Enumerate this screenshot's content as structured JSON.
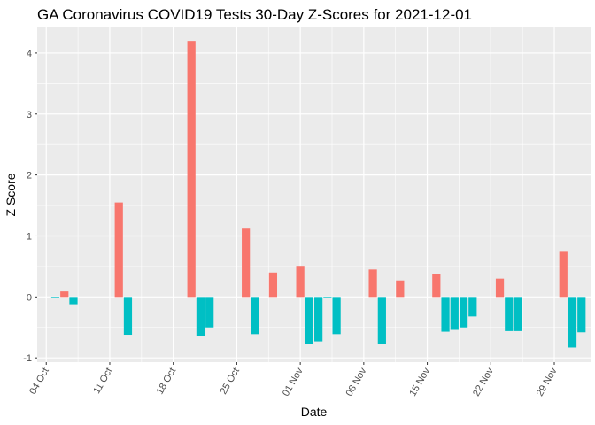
{
  "chart_data": {
    "type": "bar",
    "title": "GA Coronavirus COVID19 Tests 30-Day Z-Scores for 2021-12-01",
    "xlabel": "Date",
    "ylabel": "Z Score",
    "x_ticks": [
      {
        "date": "2021-10-04",
        "label": "04 Oct"
      },
      {
        "date": "2021-10-11",
        "label": "11 Oct"
      },
      {
        "date": "2021-10-18",
        "label": "18 Oct"
      },
      {
        "date": "2021-10-25",
        "label": "25 Oct"
      },
      {
        "date": "2021-11-01",
        "label": "01 Nov"
      },
      {
        "date": "2021-11-08",
        "label": "08 Nov"
      },
      {
        "date": "2021-11-15",
        "label": "15 Nov"
      },
      {
        "date": "2021-11-22",
        "label": "22 Nov"
      },
      {
        "date": "2021-11-29",
        "label": "29 Nov"
      }
    ],
    "y_ticks": [
      -1,
      0,
      1,
      2,
      3,
      4
    ],
    "xlim": [
      "2021-10-03",
      "2021-12-03"
    ],
    "ylim": [
      -1.07,
      4.42
    ],
    "grid": true,
    "legend": "none",
    "colors": {
      "positive": "#F8766D",
      "negative": "#00BFC4",
      "panel": "#EBEBEB",
      "grid": "#FFFFFF"
    },
    "points": [
      {
        "date": "2021-10-05",
        "value": -0.02
      },
      {
        "date": "2021-10-06",
        "value": 0.09
      },
      {
        "date": "2021-10-07",
        "value": -0.12
      },
      {
        "date": "2021-10-12",
        "value": 1.55
      },
      {
        "date": "2021-10-13",
        "value": -0.62
      },
      {
        "date": "2021-10-20",
        "value": 4.2
      },
      {
        "date": "2021-10-21",
        "value": -0.64
      },
      {
        "date": "2021-10-22",
        "value": -0.5
      },
      {
        "date": "2021-10-26",
        "value": 1.12
      },
      {
        "date": "2021-10-27",
        "value": -0.61
      },
      {
        "date": "2021-10-29",
        "value": 0.4
      },
      {
        "date": "2021-11-01",
        "value": 0.51
      },
      {
        "date": "2021-11-02",
        "value": -0.77
      },
      {
        "date": "2021-11-03",
        "value": -0.73
      },
      {
        "date": "2021-11-04",
        "value": -0.01
      },
      {
        "date": "2021-11-05",
        "value": -0.61
      },
      {
        "date": "2021-11-09",
        "value": 0.45
      },
      {
        "date": "2021-11-10",
        "value": -0.77
      },
      {
        "date": "2021-11-12",
        "value": 0.27
      },
      {
        "date": "2021-11-16",
        "value": 0.38
      },
      {
        "date": "2021-11-17",
        "value": -0.57
      },
      {
        "date": "2021-11-18",
        "value": -0.54
      },
      {
        "date": "2021-11-19",
        "value": -0.5
      },
      {
        "date": "2021-11-20",
        "value": -0.32
      },
      {
        "date": "2021-11-23",
        "value": 0.3
      },
      {
        "date": "2021-11-24",
        "value": -0.56
      },
      {
        "date": "2021-11-25",
        "value": -0.56
      },
      {
        "date": "2021-11-30",
        "value": 0.74
      },
      {
        "date": "2021-12-01",
        "value": -0.83
      },
      {
        "date": "2021-12-02",
        "value": -0.58
      }
    ]
  }
}
